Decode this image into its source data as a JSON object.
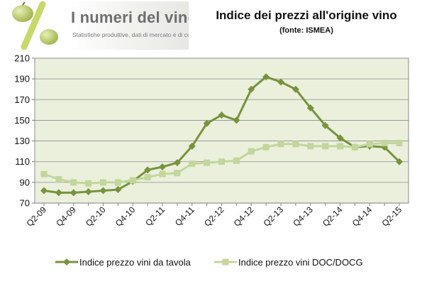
{
  "header": {
    "logo_title": "I numeri del vino",
    "logo_subtitle": "Statistiche produttive, dati di mercato e di consumo,",
    "logo_symbol": "percent-sign-with-grapes"
  },
  "chart_data": {
    "type": "line",
    "title": "Indice dei prezzi all'origine vino",
    "subtitle": "(fonte:  ISMEA)",
    "xlabel": "",
    "ylabel": "",
    "ylim": [
      70,
      210
    ],
    "yticks": [
      70,
      90,
      110,
      130,
      150,
      170,
      190,
      210
    ],
    "grid": true,
    "legend_position": "bottom",
    "plot_background": "#eaf0dc",
    "x": [
      "Q2-09",
      "Q3-09",
      "Q4-09",
      "Q1-10",
      "Q2-10",
      "Q3-10",
      "Q4-10",
      "Q1-11",
      "Q2-11",
      "Q3-11",
      "Q4-11",
      "Q1-12",
      "Q2-12",
      "Q3-12",
      "Q4-12",
      "Q1-13",
      "Q2-13",
      "Q3-13",
      "Q4-13",
      "Q1-14",
      "Q2-14",
      "Q3-14",
      "Q4-14",
      "Q1-15",
      "Q2-15"
    ],
    "xtick_labels": [
      "Q2-09",
      "Q4-09",
      "Q2-10",
      "Q4-10",
      "Q2-11",
      "Q4-11",
      "Q2-12",
      "Q4-12",
      "Q2-13",
      "Q4-13",
      "Q2-14",
      "Q4-14",
      "Q2-15"
    ],
    "series": [
      {
        "name": "Indice prezzo vini da tavola",
        "color": "#77933c",
        "marker": "diamond",
        "values": [
          82,
          80,
          80,
          81,
          82,
          83,
          91,
          102,
          105,
          109,
          125,
          147,
          155,
          150,
          180,
          192,
          187,
          180,
          162,
          145,
          133,
          124,
          125,
          124,
          110
        ]
      },
      {
        "name": "Indice prezzo vini DOC/DOCG",
        "color": "#c3d69b",
        "marker": "square",
        "values": [
          98,
          93,
          90,
          89,
          90,
          90,
          92,
          95,
          98,
          99,
          108,
          109,
          110,
          111,
          120,
          124,
          127,
          127,
          125,
          125,
          125,
          124,
          127,
          128,
          128
        ]
      }
    ]
  }
}
